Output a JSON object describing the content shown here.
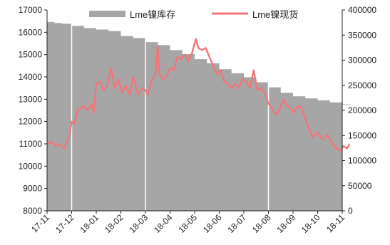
{
  "chart_data": {
    "type": "area+line",
    "title": "",
    "series": [
      {
        "name": "Lme镍库存",
        "type": "area",
        "axis": "right",
        "color": "#a6a6a6"
      },
      {
        "name": "Lme镍现货",
        "type": "line",
        "axis": "left",
        "color": "#f0767a"
      }
    ],
    "x_labels": [
      "17-11",
      "17-12",
      "18-01",
      "18-02",
      "18-03",
      "18-04",
      "18-05",
      "18-06",
      "18-07",
      "18-08",
      "18-09",
      "18-10",
      "18-11"
    ],
    "left_axis": {
      "min": 8000,
      "max": 17000,
      "ticks": [
        "8000",
        "9000",
        "10000",
        "11000",
        "12000",
        "13000",
        "14000",
        "15000",
        "16000",
        "17000"
      ]
    },
    "right_axis": {
      "min": 0,
      "max": 400000,
      "ticks": [
        "0",
        "50000",
        "100000",
        "150000",
        "200000",
        "250000",
        "300000",
        "350000",
        "400000"
      ]
    },
    "vertical_gridlines_at": [
      "17-12",
      "18-03",
      "18-08"
    ],
    "inventory_points": [
      [
        0,
        376000
      ],
      [
        0.3,
        374000
      ],
      [
        0.6,
        372500
      ],
      [
        1.0,
        368000
      ],
      [
        1.3,
        368500
      ],
      [
        1.5,
        364000
      ],
      [
        2.0,
        361000
      ],
      [
        2.5,
        358000
      ],
      [
        3.0,
        348000
      ],
      [
        3.5,
        344000
      ],
      [
        4.0,
        336000
      ],
      [
        4.5,
        330000
      ],
      [
        5.0,
        320000
      ],
      [
        5.5,
        312000
      ],
      [
        6.0,
        302000
      ],
      [
        6.5,
        294000
      ],
      [
        7.0,
        282000
      ],
      [
        7.5,
        274000
      ],
      [
        8.0,
        266000
      ],
      [
        8.5,
        256000
      ],
      [
        9.0,
        246000
      ],
      [
        9.5,
        235000
      ],
      [
        10.0,
        228000
      ],
      [
        10.5,
        224000
      ],
      [
        11.0,
        220000
      ],
      [
        11.5,
        216000
      ],
      [
        12.0,
        212000
      ],
      [
        12.3,
        211000
      ]
    ],
    "spot_points": [
      [
        0,
        11000
      ],
      [
        0.2,
        11100
      ],
      [
        0.35,
        10900
      ],
      [
        0.5,
        11000
      ],
      [
        0.7,
        10800
      ],
      [
        0.9,
        11300
      ],
      [
        1.0,
        12000
      ],
      [
        1.1,
        11900
      ],
      [
        1.25,
        12500
      ],
      [
        1.5,
        12700
      ],
      [
        1.65,
        12500
      ],
      [
        1.8,
        12800
      ],
      [
        1.9,
        12400
      ],
      [
        2.0,
        13700
      ],
      [
        2.15,
        13800
      ],
      [
        2.3,
        13400
      ],
      [
        2.45,
        13600
      ],
      [
        2.6,
        14400
      ],
      [
        2.75,
        13500
      ],
      [
        2.9,
        13900
      ],
      [
        3.05,
        13300
      ],
      [
        3.2,
        13600
      ],
      [
        3.35,
        13200
      ],
      [
        3.5,
        14000
      ],
      [
        3.7,
        13200
      ],
      [
        3.85,
        13500
      ],
      [
        4.0,
        13400
      ],
      [
        4.1,
        13200
      ],
      [
        4.25,
        13800
      ],
      [
        4.4,
        14100
      ],
      [
        4.5,
        15400
      ],
      [
        4.55,
        14200
      ],
      [
        4.7,
        13900
      ],
      [
        4.85,
        14000
      ],
      [
        5.0,
        14400
      ],
      [
        5.15,
        14300
      ],
      [
        5.3,
        14900
      ],
      [
        5.45,
        14800
      ],
      [
        5.6,
        15000
      ],
      [
        5.75,
        14700
      ],
      [
        5.9,
        15100
      ],
      [
        6.05,
        15700
      ],
      [
        6.15,
        15300
      ],
      [
        6.3,
        15200
      ],
      [
        6.45,
        15300
      ],
      [
        6.6,
        14900
      ],
      [
        6.75,
        14500
      ],
      [
        6.9,
        14100
      ],
      [
        7.05,
        14300
      ],
      [
        7.2,
        13800
      ],
      [
        7.35,
        13700
      ],
      [
        7.5,
        13500
      ],
      [
        7.65,
        13700
      ],
      [
        7.8,
        13500
      ],
      [
        7.95,
        13900
      ],
      [
        8.1,
        13800
      ],
      [
        8.25,
        13500
      ],
      [
        8.4,
        14300
      ],
      [
        8.55,
        13400
      ],
      [
        8.7,
        13500
      ],
      [
        8.85,
        13300
      ],
      [
        9.0,
        12800
      ],
      [
        9.15,
        12600
      ],
      [
        9.3,
        12300
      ],
      [
        9.45,
        12500
      ],
      [
        9.6,
        13000
      ],
      [
        9.75,
        12700
      ],
      [
        9.9,
        12600
      ],
      [
        10.05,
        12400
      ],
      [
        10.2,
        12700
      ],
      [
        10.35,
        12600
      ],
      [
        10.5,
        12100
      ],
      [
        10.65,
        11700
      ],
      [
        10.8,
        11300
      ],
      [
        11.0,
        11500
      ],
      [
        11.2,
        11200
      ],
      [
        11.4,
        11400
      ],
      [
        11.6,
        11000
      ],
      [
        11.75,
        10800
      ],
      [
        11.9,
        10700
      ],
      [
        12.05,
        10900
      ],
      [
        12.2,
        10800
      ],
      [
        12.3,
        11000
      ]
    ]
  }
}
